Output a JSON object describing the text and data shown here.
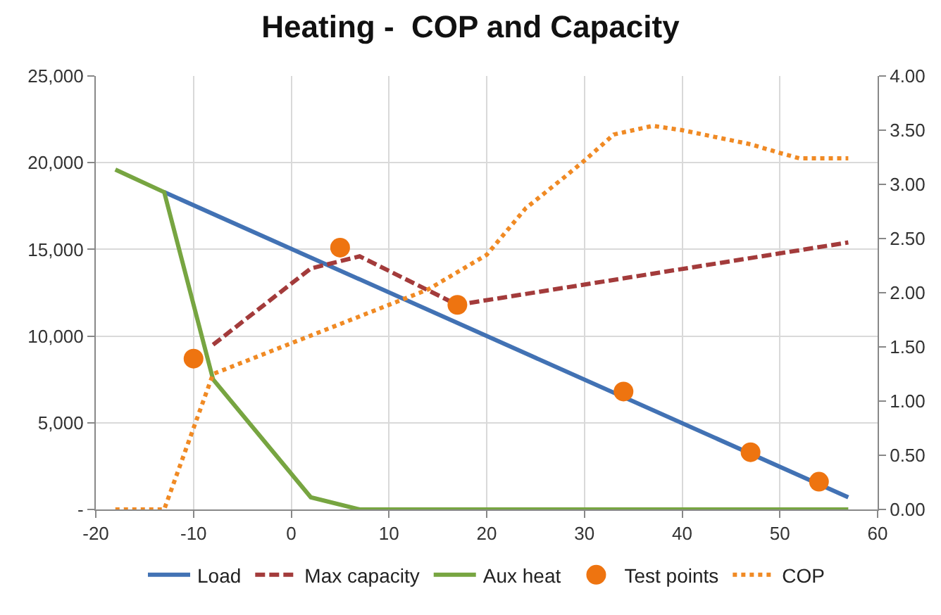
{
  "chart_data": {
    "type": "line",
    "title": "Heating -  COP and Capacity",
    "xlim": [
      -20,
      60
    ],
    "xticks": [
      -20,
      -10,
      0,
      10,
      20,
      30,
      40,
      50,
      60
    ],
    "ylim": [
      0,
      25000
    ],
    "yticks": [
      {
        "value": 0,
        "label": "-"
      },
      {
        "value": 5000,
        "label": "5,000"
      },
      {
        "value": 10000,
        "label": "10,000"
      },
      {
        "value": 15000,
        "label": "15,000"
      },
      {
        "value": 20000,
        "label": "20,000"
      },
      {
        "value": 25000,
        "label": "25,000"
      }
    ],
    "y2lim": [
      0,
      4
    ],
    "y2ticks": [
      {
        "value": 0,
        "label": "0.00"
      },
      {
        "value": 0.5,
        "label": "0.50"
      },
      {
        "value": 1,
        "label": "1.00"
      },
      {
        "value": 1.5,
        "label": "1.50"
      },
      {
        "value": 2,
        "label": "2.00"
      },
      {
        "value": 2.5,
        "label": "2.50"
      },
      {
        "value": 3,
        "label": "3.00"
      },
      {
        "value": 3.5,
        "label": "3.50"
      },
      {
        "value": 4,
        "label": "4.00"
      }
    ],
    "grid": true,
    "legend": "bottom",
    "series": [
      {
        "name": "Load",
        "color": "#4272b4",
        "line_style": "solid",
        "x": [
          -13,
          57
        ],
        "values": [
          18300,
          700
        ]
      },
      {
        "name": "Max capacity",
        "color": "#a33b3b",
        "line_style": "dashed",
        "x": [
          -8,
          2,
          7,
          17,
          57
        ],
        "values": [
          9500,
          13900,
          14600,
          11800,
          15400
        ]
      },
      {
        "name": "Aux heat",
        "color": "#77a541",
        "line_style": "solid",
        "x": [
          -18,
          -13,
          -8,
          2,
          7,
          57
        ],
        "values": [
          19600,
          18300,
          7500,
          700,
          0,
          0
        ]
      },
      {
        "name": "Test points",
        "type": "scatter",
        "marker": "circle",
        "color": "#ee7410",
        "x": [
          -10,
          5,
          17,
          34,
          47,
          54
        ],
        "values": [
          8700,
          15100,
          11800,
          6800,
          3300,
          1600
        ]
      },
      {
        "name": "COP",
        "color": "#f08a24",
        "line_style": "dotted",
        "axis": "y2",
        "x": [
          -18,
          -13,
          -8,
          14,
          20,
          24,
          28,
          30,
          33,
          37,
          40,
          47,
          50,
          52,
          57
        ],
        "values": [
          0,
          0,
          1.25,
          2.03,
          2.35,
          2.78,
          3.07,
          3.22,
          3.46,
          3.54,
          3.5,
          3.37,
          3.29,
          3.24,
          3.24
        ]
      }
    ]
  }
}
